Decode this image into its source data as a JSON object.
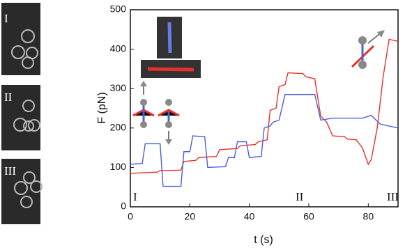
{
  "chart_data": {
    "type": "line",
    "x_label": "t (s)",
    "y_label": "F (pN)",
    "panel_labels": [
      "I",
      "II",
      "III"
    ],
    "annotations": [
      "I",
      "II",
      "III"
    ],
    "xlim": [
      0,
      90
    ],
    "xticks": [
      0,
      20,
      40,
      60,
      80
    ],
    "ylim": [
      0,
      500
    ],
    "yticks": [
      0,
      100,
      200,
      300,
      400,
      500
    ],
    "series": [
      {
        "color": "#e8302a",
        "x": [
          0,
          9,
          10,
          17,
          18,
          22,
          23,
          29,
          30,
          36,
          37,
          42,
          43,
          46,
          47,
          49,
          50,
          52,
          53,
          58,
          59,
          62,
          64,
          66,
          68,
          72,
          73,
          76,
          78,
          80,
          81,
          83,
          85,
          87,
          90
        ],
        "values": [
          85,
          88,
          92,
          93,
          115,
          118,
          125,
          128,
          145,
          148,
          155,
          158,
          165,
          170,
          245,
          250,
          305,
          310,
          340,
          338,
          330,
          325,
          230,
          215,
          180,
          178,
          172,
          170,
          150,
          108,
          120,
          200,
          330,
          425,
          420
        ]
      },
      {
        "color": "#4a5fd6",
        "x": [
          0,
          4,
          5,
          10,
          11,
          17,
          18,
          20,
          21,
          25,
          26,
          32,
          33,
          35,
          36,
          39,
          40,
          44,
          45,
          47,
          48,
          50,
          52,
          62,
          64,
          68,
          78,
          81,
          84,
          90
        ],
        "values": [
          108,
          110,
          160,
          160,
          52,
          52,
          140,
          140,
          180,
          178,
          100,
          102,
          125,
          125,
          165,
          165,
          125,
          128,
          200,
          205,
          215,
          220,
          285,
          285,
          220,
          225,
          225,
          232,
          210,
          200
        ]
      }
    ]
  }
}
